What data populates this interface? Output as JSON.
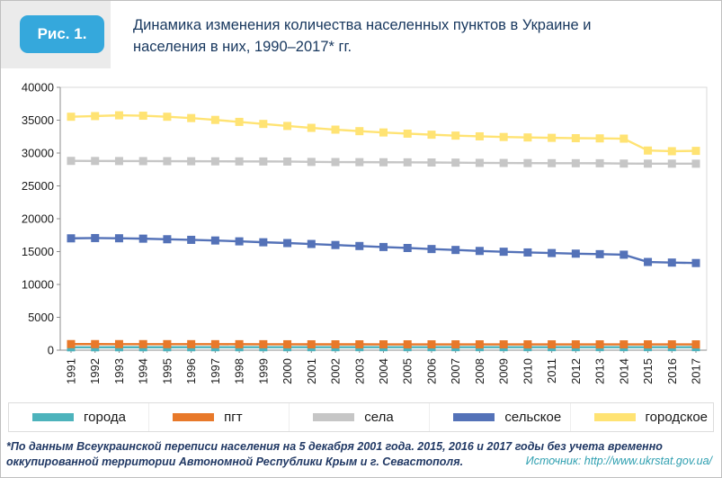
{
  "header": {
    "badge": "Рис. 1.",
    "title_lines": [
      "Динамика изменения количества населенных пунктов в Украине и",
      "населения в них, 1990–2017* гг."
    ]
  },
  "footnote_lines": [
    "*По данным Всеукраинской переписи населения на 5 декабря 2001 года. 2015, 2016 и 2017 годы без учета временно",
    "оккупированной территории Автономной Республики Крым и г. Севастополя."
  ],
  "source": "Источник: http://www.ukrstat.gov.ua/",
  "colors": {
    "badge_blue": "#35a8dc",
    "title_navy": "#17375e",
    "source_teal": "#2e9fb0",
    "axis_gray": "#8c8c8c"
  },
  "chart_data": {
    "type": "line",
    "title": "Динамика изменения количества населенных пунктов в Украине и населения в них, 1990–2017 гг.",
    "xlabel": "",
    "ylabel": "",
    "ylim": [
      0,
      40000
    ],
    "ytick_step": 5000,
    "grid": false,
    "legend_position": "bottom",
    "marker": "square",
    "x": [
      1991,
      1992,
      1993,
      1994,
      1995,
      1996,
      1997,
      1998,
      1999,
      2000,
      2001,
      2002,
      2003,
      2004,
      2005,
      2006,
      2007,
      2008,
      2009,
      2010,
      2011,
      2012,
      2013,
      2014,
      2015,
      2016,
      2017
    ],
    "series": [
      {
        "name": "города",
        "color": "#4db3bc",
        "values": [
          436,
          441,
          444,
          445,
          446,
          447,
          448,
          448,
          449,
          451,
          454,
          455,
          456,
          456,
          457,
          457,
          458,
          458,
          459,
          459,
          459,
          459,
          460,
          460,
          460,
          460,
          461
        ]
      },
      {
        "name": "пгт",
        "color": "#e8792a",
        "values": [
          925,
          923,
          921,
          919,
          917,
          914,
          911,
          908,
          905,
          897,
          891,
          890,
          889,
          888,
          888,
          887,
          886,
          886,
          886,
          885,
          885,
          885,
          885,
          885,
          885,
          885,
          884
        ]
      },
      {
        "name": "села",
        "color": "#c6c6c6",
        "values": [
          28804,
          28793,
          28782,
          28771,
          28760,
          28749,
          28738,
          28727,
          28716,
          28705,
          28651,
          28626,
          28612,
          28597,
          28585,
          28562,
          28540,
          28504,
          28490,
          28471,
          28457,
          28450,
          28441,
          28397,
          28388,
          28385,
          28377
        ]
      },
      {
        "name": "сельское",
        "color": "#5472b8",
        "values": [
          17020,
          17060,
          17030,
          16970,
          16880,
          16790,
          16690,
          16560,
          16420,
          16300,
          16160,
          16000,
          15850,
          15700,
          15550,
          15390,
          15250,
          15100,
          14980,
          14870,
          14780,
          14690,
          14610,
          14530,
          13420,
          13330,
          13260
        ]
      },
      {
        "name": "городское",
        "color": "#ffe373",
        "values": [
          35520,
          35620,
          35740,
          35680,
          35520,
          35320,
          35040,
          34740,
          34430,
          34120,
          33830,
          33560,
          33330,
          33130,
          32950,
          32790,
          32650,
          32540,
          32440,
          32370,
          32310,
          32260,
          32230,
          32190,
          30380,
          30280,
          30330
        ]
      }
    ]
  }
}
